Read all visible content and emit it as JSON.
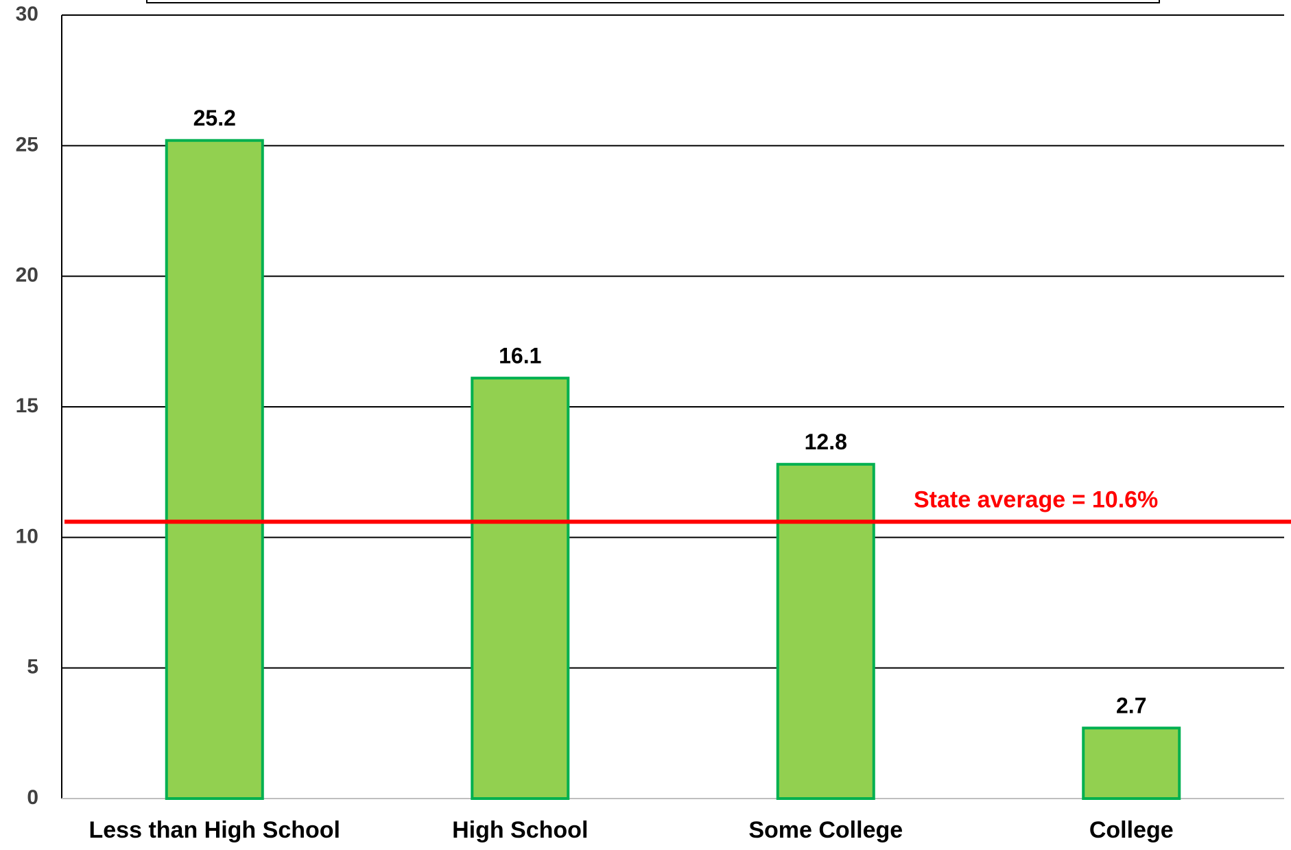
{
  "chart_data": {
    "type": "bar",
    "categories": [
      "Less than High School",
      "High School",
      "Some College",
      "College"
    ],
    "values": [
      25.2,
      16.1,
      12.8,
      2.7
    ],
    "color": "#92d050",
    "edge_color": "#00b050",
    "ylim": [
      0,
      30
    ],
    "yticks": [
      0,
      5,
      10,
      15,
      20,
      25,
      30
    ],
    "grid": true,
    "reference_line": {
      "value": 10.6,
      "label": "State average = 10.6%",
      "color": "#ff0000"
    }
  }
}
